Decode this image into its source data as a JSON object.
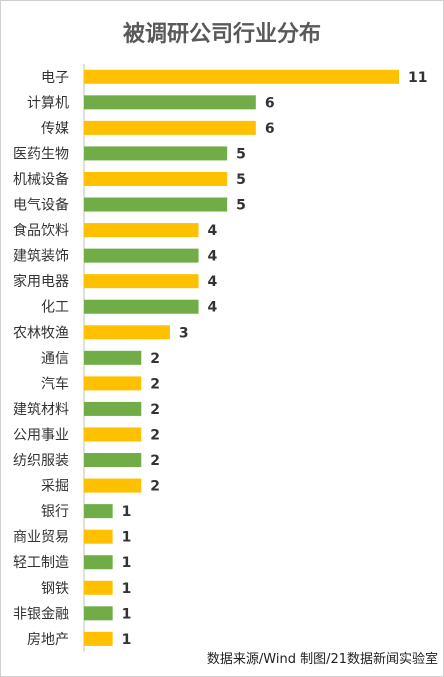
{
  "title": "被调研公司行业分布",
  "source": "数据来源/Wind  制图/21数据新闻实验室",
  "colors": {
    "yellow": "#FFC000",
    "green": "#70AD47",
    "axis": "#BFBFBF",
    "label": "#333333",
    "value": "#333333"
  },
  "chart_data": {
    "type": "bar",
    "orientation": "horizontal",
    "title": "被调研公司行业分布",
    "xlabel": "",
    "ylabel": "",
    "xlim": [
      0,
      11
    ],
    "grid": false,
    "categories": [
      "电子",
      "计算机",
      "传媒",
      "医药生物",
      "机械设备",
      "电气设备",
      "食品饮料",
      "建筑装饰",
      "家用电器",
      "化工",
      "农林牧渔",
      "通信",
      "汽车",
      "建筑材料",
      "公用事业",
      "纺织服装",
      "采掘",
      "银行",
      "商业贸易",
      "轻工制造",
      "钢铁",
      "非银金融",
      "房地产"
    ],
    "values": [
      11,
      6,
      6,
      5,
      5,
      5,
      4,
      4,
      4,
      4,
      3,
      2,
      2,
      2,
      2,
      2,
      2,
      1,
      1,
      1,
      1,
      1,
      1
    ],
    "bar_colors": [
      "yellow",
      "green",
      "yellow",
      "green",
      "yellow",
      "green",
      "yellow",
      "green",
      "yellow",
      "green",
      "yellow",
      "green",
      "yellow",
      "green",
      "yellow",
      "green",
      "yellow",
      "green",
      "yellow",
      "green",
      "yellow",
      "green",
      "yellow"
    ]
  }
}
